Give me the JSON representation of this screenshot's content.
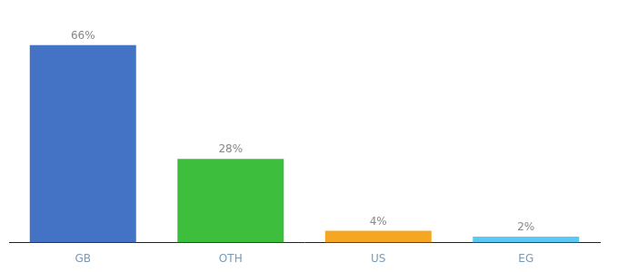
{
  "chart_data": {
    "type": "bar",
    "categories": [
      "GB",
      "OTH",
      "US",
      "EG"
    ],
    "values": [
      66,
      28,
      4,
      2
    ],
    "colors": [
      "#4472c4",
      "#3dbf3d",
      "#f5a623",
      "#5bc8f5"
    ],
    "data_labels": true,
    "value_labels": [
      "66%",
      "28%",
      "4%",
      "2%"
    ],
    "ylim": [
      0,
      78
    ],
    "grid": false,
    "tick_labels": "x"
  }
}
